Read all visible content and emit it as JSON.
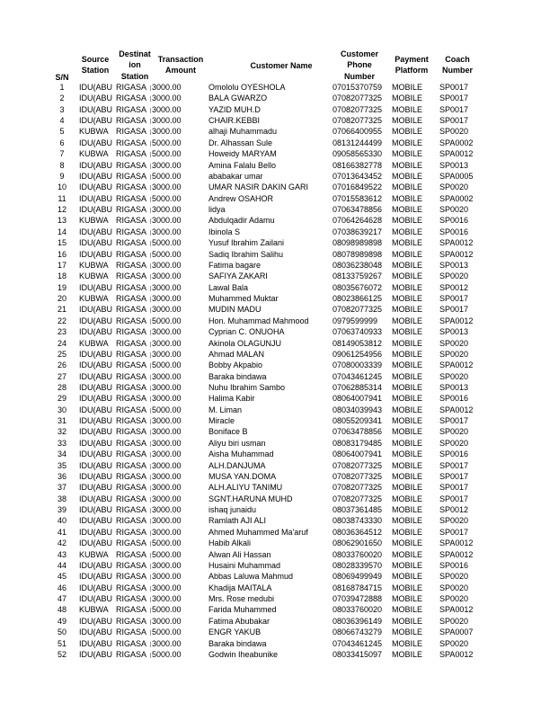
{
  "headers": {
    "sn": "S/N",
    "source": [
      "Source",
      "Station"
    ],
    "destination": [
      "Destinat",
      "ion",
      "Station"
    ],
    "amount": [
      "Transaction",
      "Amount"
    ],
    "name": "Customer Name",
    "phone": [
      "Customer",
      "Phone",
      "Number"
    ],
    "platform": [
      "Payment",
      "Platform"
    ],
    "coach": [
      "Coach",
      "Number"
    ]
  },
  "rows": [
    [
      "1",
      "IDU(ABU",
      "RIGASA",
      "3000.00",
      "Omololu OYESHOLA",
      "07015370759",
      "MOBILE",
      "SP0017"
    ],
    [
      "2",
      "IDU(ABU",
      "RIGASA",
      "3000.00",
      "BALA GWARZO",
      "07082077325",
      "MOBILE",
      "SP0017"
    ],
    [
      "3",
      "IDU(ABU",
      "RIGASA",
      "3000.00",
      "YAZID MUH.D",
      "07082077325",
      "MOBILE",
      "SP0017"
    ],
    [
      "4",
      "IDU(ABU",
      "RIGASA",
      "3000.00",
      "CHAIR.KEBBI",
      "07082077325",
      "MOBILE",
      "SP0017"
    ],
    [
      "5",
      "KUBWA",
      "RIGASA",
      "3000.00",
      "alhaji Muhammadu",
      "07066400955",
      "MOBILE",
      "SP0020"
    ],
    [
      "6",
      "IDU(ABU",
      "RIGASA",
      "5000.00",
      "Dr. Alhassan Sule",
      "08131244499",
      "MOBILE",
      "SPA0002"
    ],
    [
      "7",
      "KUBWA",
      "RIGASA",
      "5000.00",
      "Howeidy MARYAM",
      "09058565330",
      "MOBILE",
      "SPA0012"
    ],
    [
      "8",
      "IDU(ABU",
      "RIGASA",
      "3000.00",
      "Amina Falalu Bello",
      "08166382778",
      "MOBILE",
      "SP0013"
    ],
    [
      "9",
      "IDU(ABU",
      "RIGASA",
      "5000.00",
      "ababakar umar",
      "07013643452",
      "MOBILE",
      "SPA0005"
    ],
    [
      "10",
      "IDU(ABU",
      "RIGASA",
      "3000.00",
      "UMAR NASIR DAKIN GARI",
      "07016849522",
      "MOBILE",
      "SP0020"
    ],
    [
      "11",
      "IDU(ABU",
      "RIGASA",
      "5000.00",
      "Andrew OSAHOR",
      "07015583612",
      "MOBILE",
      "SPA0002"
    ],
    [
      "12",
      "IDU(ABU",
      "RIGASA",
      "3000.00",
      "lidya",
      "07063478856",
      "MOBILE",
      "SP0020"
    ],
    [
      "13",
      "KUBWA",
      "RIGASA",
      "3000.00",
      "Abdulqadir Adamu",
      "07064264628",
      "MOBILE",
      "SP0016"
    ],
    [
      "14",
      "IDU(ABU",
      "RIGASA",
      "3000.00",
      "Ibinola S",
      "07038639217",
      "MOBILE",
      "SP0016"
    ],
    [
      "15",
      "IDU(ABU",
      "RIGASA",
      "5000.00",
      "Yusuf Ibrahim Zailani",
      "08098989898",
      "MOBILE",
      "SPA0012"
    ],
    [
      "16",
      "IDU(ABU",
      "RIGASA",
      "5000.00",
      "Sadiq Ibrahim Salihu",
      "08078989898",
      "MOBILE",
      "SPA0012"
    ],
    [
      "17",
      "KUBWA",
      "RIGASA",
      "3000.00",
      "Fatima bagare",
      "08036238048",
      "MOBILE",
      "SP0013"
    ],
    [
      "18",
      "KUBWA",
      "RIGASA",
      "3000.00",
      "SAFIYA ZAKARI",
      "08133759267",
      "MOBILE",
      "SP0020"
    ],
    [
      "19",
      "IDU(ABU",
      "RIGASA",
      "3000.00",
      "Lawal Bala",
      "08035676072",
      "MOBILE",
      "SP0012"
    ],
    [
      "20",
      "KUBWA",
      "RIGASA",
      "3000.00",
      "Muhammed Muktar",
      "08023866125",
      "MOBILE",
      "SP0017"
    ],
    [
      "21",
      "IDU(ABU",
      "RIGASA",
      "3000.00",
      "MUDIN MADU",
      "07082077325",
      "MOBILE",
      "SP0017"
    ],
    [
      "22",
      "IDU(ABU",
      "RIGASA",
      "5000.00",
      "Hon. Muhammad Mahmood",
      "0979599999",
      "MOBILE",
      "SPA0012"
    ],
    [
      "23",
      "IDU(ABU",
      "RIGASA",
      "3000.00",
      "Cyprian C. ONUOHA",
      "07063740933",
      "MOBILE",
      "SP0013"
    ],
    [
      "24",
      "KUBWA",
      "RIGASA",
      "3000.00",
      "Akinola OLAGUNJU",
      "08149053812",
      "MOBILE",
      "SP0020"
    ],
    [
      "25",
      "IDU(ABU",
      "RIGASA",
      "3000.00",
      "Ahmad MALAN",
      "09061254956",
      "MOBILE",
      "SP0020"
    ],
    [
      "26",
      "IDU(ABU",
      "RIGASA",
      "5000.00",
      "Bobby Akpabio",
      "07080003339",
      "MOBILE",
      "SPA0012"
    ],
    [
      "27",
      "IDU(ABU",
      "RIGASA",
      "3000.00",
      "Baraka bindawa",
      "07043461245",
      "MOBILE",
      "SP0020"
    ],
    [
      "28",
      "IDU(ABU",
      "RIGASA",
      "3000.00",
      "Nuhu Ibrahim Sambo",
      "07062885314",
      "MOBILE",
      "SP0013"
    ],
    [
      "29",
      "IDU(ABU",
      "RIGASA",
      "3000.00",
      "Halima Kabir",
      "08064007941",
      "MOBILE",
      "SP0016"
    ],
    [
      "30",
      "IDU(ABU",
      "RIGASA",
      "5000.00",
      "M. Liman",
      "08034039943",
      "MOBILE",
      "SPA0012"
    ],
    [
      "31",
      "IDU(ABU",
      "RIGASA",
      "3000.00",
      "Miracle",
      "08055209341",
      "MOBILE",
      "SP0017"
    ],
    [
      "32",
      "IDU(ABU",
      "RIGASA",
      "3000.00",
      "Boniface B",
      "07063478856",
      "MOBILE",
      "SP0020"
    ],
    [
      "33",
      "IDU(ABU",
      "RIGASA",
      "3000.00",
      " Aliyu biri usman",
      "08083179485",
      "MOBILE",
      "SP0020"
    ],
    [
      "34",
      "IDU(ABU",
      "RIGASA",
      "3000.00",
      "Aisha Muhammad",
      "08064007941",
      "MOBILE",
      "SP0016"
    ],
    [
      "35",
      "IDU(ABU",
      "RIGASA",
      "3000.00",
      "ALH.DANJUMA",
      "07082077325",
      "MOBILE",
      "SP0017"
    ],
    [
      "36",
      "IDU(ABU",
      "RIGASA",
      "3000.00",
      "MUSA YAN.DOMA",
      "07082077325",
      "MOBILE",
      "SP0017"
    ],
    [
      "37",
      "IDU(ABU",
      "RIGASA",
      "3000.00",
      "ALH.ALIYU TANIMU",
      "07082077325",
      "MOBILE",
      "SP0017"
    ],
    [
      "38",
      "IDU(ABU",
      "RIGASA",
      "3000.00",
      "SGNT.HARUNA MUHD",
      "07082077325",
      "MOBILE",
      "SP0017"
    ],
    [
      "39",
      "IDU(ABU",
      "RIGASA",
      "3000.00",
      "ishaq junaidu",
      "08037361485",
      "MOBILE",
      "SP0012"
    ],
    [
      "40",
      "IDU(ABU",
      "RIGASA",
      "3000.00",
      "Ramlath AJI ALI",
      "08038743330",
      "MOBILE",
      "SP0020"
    ],
    [
      "41",
      "IDU(ABU",
      "RIGASA",
      "3000.00",
      "Ahmed Muhammed Ma'aruf",
      "08036364512",
      "MOBILE",
      "SP0017"
    ],
    [
      "42",
      "IDU(ABU",
      "RIGASA",
      "5000.00",
      "Habib Alkali",
      "08062901650",
      "MOBILE",
      "SPA0012"
    ],
    [
      "43",
      "KUBWA",
      "RIGASA",
      "5000.00",
      "Alwan Ali Hassan",
      "08033760020",
      "MOBILE",
      "SPA0012"
    ],
    [
      "44",
      "IDU(ABU",
      "RIGASA",
      "3000.00",
      "Husaini Muhammad",
      "08028339570",
      "MOBILE",
      "SP0016"
    ],
    [
      "45",
      "IDU(ABU",
      "RIGASA",
      "3000.00",
      "Abbas Laluwa Mahmud",
      "08069499949",
      "MOBILE",
      "SP0020"
    ],
    [
      "46",
      "IDU(ABU",
      "RIGASA",
      "3000.00",
      "Khadija MAITALA",
      "08168784715",
      "MOBILE",
      "SP0020"
    ],
    [
      "47",
      "IDU(ABU",
      "RIGASA",
      "3000.00",
      "Mrs. Rose medubi",
      "07039472888",
      "MOBILE",
      "SP0020"
    ],
    [
      "48",
      "KUBWA",
      "RIGASA",
      "5000.00",
      "Farida Muhammed",
      "08033760020",
      "MOBILE",
      "SPA0012"
    ],
    [
      "49",
      "IDU(ABU",
      "RIGASA",
      "3000.00",
      "Fatima Abubakar",
      "08036396149",
      "MOBILE",
      "SP0020"
    ],
    [
      "50",
      "IDU(ABU",
      "RIGASA",
      "5000.00",
      "ENGR YAKUB",
      "08066743279",
      "MOBILE",
      "SPA0007"
    ],
    [
      "51",
      "IDU(ABU",
      "RIGASA",
      "3000.00",
      "Baraka bindawa",
      "07043461245",
      "MOBILE",
      "SP0020"
    ],
    [
      "52",
      "IDU(ABU",
      "RIGASA",
      "5000.00",
      "Godwin Iheabunike",
      "08033415097",
      "MOBILE",
      "SPA0012"
    ]
  ]
}
